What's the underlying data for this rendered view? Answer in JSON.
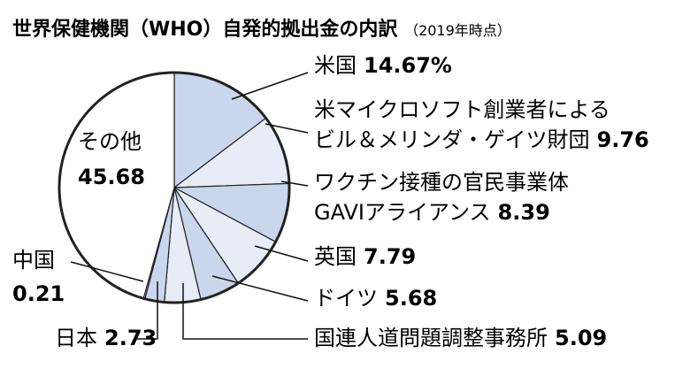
{
  "chart_data": {
    "type": "pie",
    "title": "世界保健機関（WHO）自発的拠出金の内訳",
    "subtitle": "（2019年時点）",
    "unit": "%",
    "slices": [
      {
        "label": "米国",
        "value": 14.67,
        "value_text": "14.67%"
      },
      {
        "label": "米マイクロソフト創業者によるビル＆メリンダ・ゲイツ財団",
        "label_lines": [
          "米マイクロソフト創業者による",
          "ビル＆メリンダ・ゲイツ財団"
        ],
        "value": 9.76,
        "value_text": "9.76"
      },
      {
        "label": "ワクチン接種の官民事業体GAVIアライアンス",
        "label_lines": [
          "ワクチン接種の官民事業体",
          "GAVIアライアンス"
        ],
        "value": 8.39,
        "value_text": "8.39"
      },
      {
        "label": "英国",
        "value": 7.79,
        "value_text": "7.79"
      },
      {
        "label": "ドイツ",
        "value": 5.68,
        "value_text": "5.68"
      },
      {
        "label": "国連人道問題調整事務所",
        "value": 5.09,
        "value_text": "5.09"
      },
      {
        "label": "日本",
        "value": 2.73,
        "value_text": "2.73"
      },
      {
        "label": "中国",
        "value": 0.21,
        "value_text": "0.21"
      },
      {
        "label": "その他",
        "value": 45.68,
        "value_text": "45.68"
      }
    ],
    "colors": {
      "highlight": "#c9d6ec",
      "light": "#e6edf7",
      "other": "#ffffff",
      "stroke": "#222222"
    }
  }
}
